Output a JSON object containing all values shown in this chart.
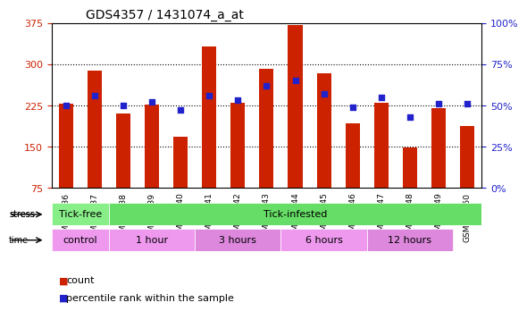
{
  "title": "GDS4357 / 1431074_a_at",
  "samples": [
    "GSM956136",
    "GSM956137",
    "GSM956138",
    "GSM956139",
    "GSM956140",
    "GSM956141",
    "GSM956142",
    "GSM956143",
    "GSM956144",
    "GSM956145",
    "GSM956146",
    "GSM956147",
    "GSM956148",
    "GSM956149",
    "GSM956150"
  ],
  "counts": [
    228,
    289,
    210,
    226,
    168,
    333,
    230,
    291,
    372,
    284,
    192,
    230,
    148,
    220,
    188
  ],
  "percentiles": [
    50,
    56,
    50,
    52,
    47,
    56,
    53,
    62,
    65,
    57,
    49,
    55,
    43,
    51,
    51
  ],
  "y_min": 75,
  "y_max": 375,
  "y_ticks_left": [
    75,
    150,
    225,
    300,
    375
  ],
  "y_ticks_right": [
    0,
    25,
    50,
    75,
    100
  ],
  "bar_color": "#cc2200",
  "dot_color": "#2222cc",
  "grid_color": "#000000",
  "bg_color": "#e8e8e8",
  "plot_bg": "#ffffff",
  "stress_groups": [
    {
      "label": "Tick-free",
      "start": 0,
      "end": 2,
      "color": "#88ee88"
    },
    {
      "label": "Tick-infested",
      "start": 2,
      "end": 14,
      "color": "#66dd66"
    }
  ],
  "time_groups": [
    {
      "label": "control",
      "start": 0,
      "end": 2,
      "color": "#ee99ee"
    },
    {
      "label": "1 hour",
      "start": 2,
      "end": 5,
      "color": "#ee99ee"
    },
    {
      "label": "3 hours",
      "start": 5,
      "end": 8,
      "color": "#dd88dd"
    },
    {
      "label": "6 hours",
      "start": 8,
      "end": 11,
      "color": "#ee99ee"
    },
    {
      "label": "12 hours",
      "start": 11,
      "end": 14,
      "color": "#dd88dd"
    }
  ],
  "legend_count_label": "count",
  "legend_pct_label": "percentile rank within the sample",
  "stress_label": "stress",
  "time_label": "time"
}
